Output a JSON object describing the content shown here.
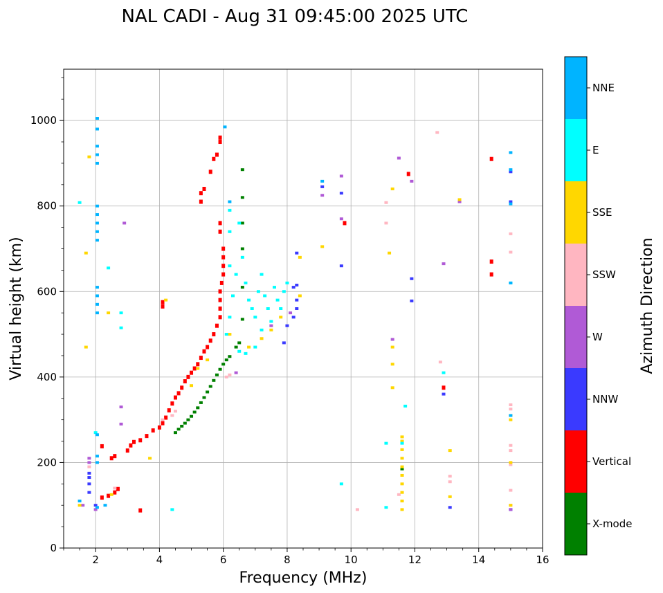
{
  "chart_data": {
    "type": "scatter",
    "title": "NAL CADI - Aug 31 09:45:00 2025 UTC",
    "xlabel": "Frequency (MHz)",
    "ylabel": "Virtual height (km)",
    "xlim": [
      1,
      16
    ],
    "ylim": [
      0,
      1120
    ],
    "xticks": [
      2,
      4,
      6,
      8,
      10,
      12,
      14,
      16
    ],
    "yticks": [
      0,
      200,
      400,
      600,
      800,
      1000
    ],
    "grid": true,
    "colorbar": {
      "label": "Azimuth Direction",
      "categories": [
        {
          "name": "X-mode",
          "color": "#008000"
        },
        {
          "name": "Vertical",
          "color": "#ff0000"
        },
        {
          "name": "NNW",
          "color": "#3a3aff"
        },
        {
          "name": "W",
          "color": "#b05ad6"
        },
        {
          "name": "SSW",
          "color": "#ffb6c1"
        },
        {
          "name": "SSE",
          "color": "#ffd700"
        },
        {
          "name": "E",
          "color": "#00ffff"
        },
        {
          "name": "NNE",
          "color": "#00b4ff"
        }
      ]
    },
    "series": [
      {
        "name": "X-mode",
        "points": [
          [
            4.5,
            270
          ],
          [
            4.6,
            278
          ],
          [
            4.7,
            285
          ],
          [
            4.8,
            292
          ],
          [
            4.9,
            300
          ],
          [
            5.0,
            308
          ],
          [
            5.1,
            318
          ],
          [
            5.2,
            328
          ],
          [
            5.3,
            340
          ],
          [
            5.4,
            352
          ],
          [
            5.5,
            365
          ],
          [
            5.6,
            378
          ],
          [
            5.7,
            392
          ],
          [
            5.8,
            405
          ],
          [
            5.9,
            418
          ],
          [
            6.0,
            430
          ],
          [
            6.1,
            440
          ],
          [
            6.2,
            448
          ],
          [
            6.4,
            470
          ],
          [
            6.5,
            480
          ],
          [
            6.6,
            535
          ],
          [
            6.6,
            610
          ],
          [
            6.6,
            700
          ],
          [
            6.6,
            760
          ],
          [
            6.6,
            885
          ],
          [
            6.6,
            820
          ],
          [
            11.6,
            185
          ]
        ]
      },
      {
        "name": "Vertical",
        "points": [
          [
            2.2,
            118
          ],
          [
            2.4,
            122
          ],
          [
            2.6,
            130
          ],
          [
            2.7,
            138
          ],
          [
            2.5,
            210
          ],
          [
            2.6,
            215
          ],
          [
            3.0,
            228
          ],
          [
            3.1,
            240
          ],
          [
            3.2,
            248
          ],
          [
            3.4,
            252
          ],
          [
            3.6,
            262
          ],
          [
            3.8,
            275
          ],
          [
            4.0,
            282
          ],
          [
            4.1,
            292
          ],
          [
            4.2,
            305
          ],
          [
            4.3,
            322
          ],
          [
            4.4,
            338
          ],
          [
            4.5,
            352
          ],
          [
            4.6,
            362
          ],
          [
            4.7,
            375
          ],
          [
            4.8,
            390
          ],
          [
            4.9,
            400
          ],
          [
            5.0,
            410
          ],
          [
            5.1,
            420
          ],
          [
            5.2,
            430
          ],
          [
            5.3,
            445
          ],
          [
            5.4,
            460
          ],
          [
            5.5,
            470
          ],
          [
            5.6,
            485
          ],
          [
            5.7,
            500
          ],
          [
            5.8,
            520
          ],
          [
            5.9,
            540
          ],
          [
            5.9,
            560
          ],
          [
            5.9,
            580
          ],
          [
            5.9,
            600
          ],
          [
            5.95,
            620
          ],
          [
            6.0,
            640
          ],
          [
            6.0,
            660
          ],
          [
            6.0,
            680
          ],
          [
            6.0,
            700
          ],
          [
            5.9,
            740
          ],
          [
            5.9,
            760
          ],
          [
            5.3,
            810
          ],
          [
            5.3,
            830
          ],
          [
            5.4,
            840
          ],
          [
            5.6,
            880
          ],
          [
            5.7,
            910
          ],
          [
            5.8,
            920
          ],
          [
            5.9,
            950
          ],
          [
            5.9,
            960
          ],
          [
            4.1,
            565
          ],
          [
            4.1,
            575
          ],
          [
            3.4,
            88
          ],
          [
            9.8,
            760
          ],
          [
            12.9,
            375
          ],
          [
            14.4,
            670
          ],
          [
            14.4,
            640
          ],
          [
            14.4,
            910
          ],
          [
            11.8,
            875
          ],
          [
            2.2,
            238
          ]
        ]
      },
      {
        "name": "NNW",
        "points": [
          [
            1.8,
            130
          ],
          [
            1.8,
            150
          ],
          [
            1.8,
            165
          ],
          [
            1.8,
            175
          ],
          [
            2.0,
            100
          ],
          [
            7.9,
            480
          ],
          [
            8.0,
            520
          ],
          [
            8.2,
            540
          ],
          [
            8.3,
            560
          ],
          [
            8.3,
            580
          ],
          [
            8.2,
            610
          ],
          [
            8.3,
            615
          ],
          [
            8.3,
            690
          ],
          [
            9.1,
            845
          ],
          [
            9.7,
            830
          ],
          [
            9.7,
            660
          ],
          [
            11.9,
            630
          ],
          [
            11.9,
            578
          ],
          [
            12.9,
            360
          ],
          [
            13.1,
            95
          ],
          [
            15.0,
            90
          ],
          [
            15.0,
            880
          ],
          [
            15.0,
            810
          ]
        ]
      },
      {
        "name": "W",
        "points": [
          [
            1.6,
            100
          ],
          [
            1.8,
            210
          ],
          [
            1.8,
            200
          ],
          [
            2.0,
            90
          ],
          [
            2.8,
            290
          ],
          [
            2.8,
            330
          ],
          [
            2.9,
            760
          ],
          [
            6.4,
            410
          ],
          [
            7.5,
            520
          ],
          [
            8.1,
            550
          ],
          [
            9.1,
            825
          ],
          [
            9.7,
            870
          ],
          [
            9.7,
            770
          ],
          [
            11.3,
            488
          ],
          [
            11.5,
            912
          ],
          [
            11.9,
            858
          ],
          [
            12.9,
            665
          ],
          [
            13.4,
            810
          ],
          [
            15.0,
            90
          ]
        ]
      },
      {
        "name": "SSW",
        "points": [
          [
            1.8,
            190
          ],
          [
            2.6,
            140
          ],
          [
            4.1,
            300
          ],
          [
            4.4,
            310
          ],
          [
            4.5,
            320
          ],
          [
            6.1,
            400
          ],
          [
            6.2,
            405
          ],
          [
            10.2,
            90
          ],
          [
            11.1,
            808
          ],
          [
            11.1,
            760
          ],
          [
            11.5,
            125
          ],
          [
            12.7,
            972
          ],
          [
            12.8,
            435
          ],
          [
            13.1,
            168
          ],
          [
            13.1,
            155
          ],
          [
            15.0,
            735
          ],
          [
            15.0,
            692
          ],
          [
            15.0,
            335
          ],
          [
            15.0,
            325
          ],
          [
            15.0,
            240
          ],
          [
            15.0,
            228
          ],
          [
            15.0,
            195
          ],
          [
            15.0,
            135
          ],
          [
            15.0,
            100
          ]
        ]
      },
      {
        "name": "SSE",
        "points": [
          [
            1.5,
            100
          ],
          [
            1.7,
            470
          ],
          [
            1.7,
            690
          ],
          [
            1.8,
            915
          ],
          [
            2.4,
            550
          ],
          [
            2.5,
            125
          ],
          [
            3.7,
            210
          ],
          [
            4.2,
            580
          ],
          [
            5.0,
            380
          ],
          [
            5.2,
            420
          ],
          [
            5.5,
            440
          ],
          [
            6.2,
            500
          ],
          [
            6.8,
            470
          ],
          [
            7.2,
            490
          ],
          [
            7.5,
            510
          ],
          [
            7.8,
            540
          ],
          [
            8.4,
            680
          ],
          [
            8.4,
            590
          ],
          [
            9.1,
            705
          ],
          [
            11.2,
            690
          ],
          [
            11.3,
            840
          ],
          [
            11.3,
            470
          ],
          [
            11.3,
            430
          ],
          [
            11.3,
            375
          ],
          [
            11.6,
            90
          ],
          [
            11.6,
            110
          ],
          [
            11.6,
            130
          ],
          [
            11.6,
            150
          ],
          [
            11.6,
            170
          ],
          [
            11.6,
            190
          ],
          [
            11.6,
            210
          ],
          [
            11.6,
            230
          ],
          [
            11.6,
            250
          ],
          [
            11.6,
            260
          ],
          [
            13.1,
            228
          ],
          [
            13.1,
            120
          ],
          [
            13.4,
            815
          ],
          [
            15.0,
            300
          ],
          [
            15.0,
            310
          ],
          [
            15.0,
            200
          ],
          [
            15.0,
            100
          ]
        ]
      },
      {
        "name": "E",
        "points": [
          [
            1.5,
            808
          ],
          [
            2.0,
            270
          ],
          [
            2.8,
            550
          ],
          [
            2.8,
            515
          ],
          [
            2.4,
            655
          ],
          [
            4.4,
            90
          ],
          [
            6.2,
            790
          ],
          [
            6.2,
            740
          ],
          [
            6.2,
            660
          ],
          [
            6.5,
            760
          ],
          [
            6.6,
            680
          ],
          [
            6.7,
            620
          ],
          [
            6.8,
            580
          ],
          [
            6.9,
            560
          ],
          [
            7.0,
            540
          ],
          [
            7.1,
            600
          ],
          [
            7.2,
            640
          ],
          [
            7.3,
            590
          ],
          [
            7.4,
            560
          ],
          [
            7.5,
            530
          ],
          [
            7.6,
            610
          ],
          [
            7.7,
            580
          ],
          [
            7.8,
            560
          ],
          [
            7.9,
            600
          ],
          [
            8.0,
            620
          ],
          [
            6.4,
            640
          ],
          [
            6.3,
            590
          ],
          [
            6.2,
            540
          ],
          [
            6.1,
            500
          ],
          [
            6.5,
            460
          ],
          [
            6.7,
            455
          ],
          [
            7.0,
            470
          ],
          [
            7.2,
            510
          ],
          [
            9.7,
            150
          ],
          [
            11.1,
            95
          ],
          [
            11.1,
            245
          ],
          [
            11.6,
            245
          ],
          [
            11.7,
            332
          ],
          [
            12.9,
            410
          ],
          [
            15.0,
            620
          ]
        ]
      },
      {
        "name": "NNE",
        "points": [
          [
            1.5,
            110
          ],
          [
            2.05,
            1005
          ],
          [
            2.05,
            980
          ],
          [
            2.05,
            940
          ],
          [
            2.05,
            920
          ],
          [
            2.05,
            900
          ],
          [
            2.05,
            800
          ],
          [
            2.05,
            780
          ],
          [
            2.05,
            760
          ],
          [
            2.05,
            740
          ],
          [
            2.05,
            720
          ],
          [
            2.05,
            610
          ],
          [
            2.05,
            590
          ],
          [
            2.05,
            570
          ],
          [
            2.05,
            550
          ],
          [
            2.05,
            265
          ],
          [
            2.05,
            215
          ],
          [
            2.05,
            200
          ],
          [
            2.05,
            95
          ],
          [
            2.3,
            100
          ],
          [
            6.05,
            985
          ],
          [
            6.2,
            810
          ],
          [
            9.1,
            858
          ],
          [
            15.0,
            925
          ],
          [
            15.0,
            885
          ],
          [
            15.0,
            805
          ],
          [
            15.0,
            620
          ],
          [
            15.0,
            310
          ]
        ]
      }
    ]
  }
}
